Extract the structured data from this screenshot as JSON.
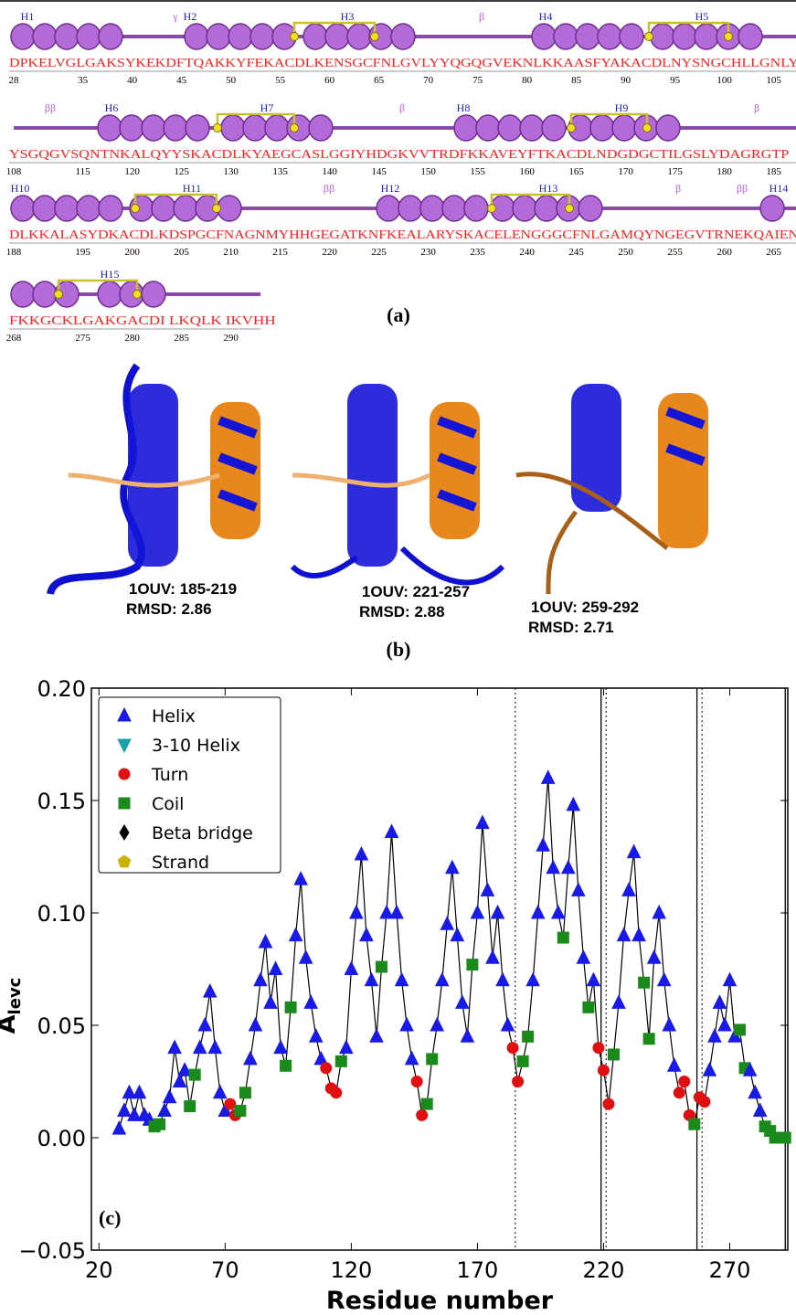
{
  "panel_a": {
    "caption": "(a)",
    "rows": [
      {
        "sequence": "DPKELVGLGAKSYKEKDFTQAKKYFEKACDLKENSGCFNLGVLYYQGQGVEKNLKKAASFYAKACDLNYSNGCHLLGNLY",
        "labels": [
          "H1",
          "γ",
          "H2",
          "H3",
          "β",
          "H4",
          "H5"
        ],
        "ticks": [
          28,
          35,
          40,
          45,
          50,
          55,
          60,
          65,
          70,
          75,
          80,
          85,
          90,
          95,
          100,
          105
        ]
      },
      {
        "sequence": "YSGQGVSQNTNKALQYYSKACDLKYAEGCASLGGIYHDGKVVTRDFKKAVEYFTKACDLNDGDGCTILGSLYDAGRGTP",
        "labels": [
          "ββ",
          "H6",
          "H7",
          "β",
          "H8",
          "H9",
          "β"
        ],
        "ticks": [
          108,
          115,
          120,
          125,
          130,
          135,
          140,
          145,
          150,
          155,
          160,
          165,
          170,
          175,
          180,
          185
        ]
      },
      {
        "sequence": "DLKKALASYDKACDLKDSPGCFNAGNMYHHGEGATKNFKEALARYSKACELENGGGCFNLGAMQYNGEGVTRNEKQAIEN",
        "labels": [
          "H10",
          "H11",
          "ββ",
          "H12",
          "H13",
          "β",
          "ββ",
          "H14"
        ],
        "ticks": [
          188,
          195,
          200,
          205,
          210,
          215,
          220,
          225,
          230,
          235,
          240,
          245,
          250,
          255,
          260,
          265
        ]
      },
      {
        "sequence": "FKKGCKLGAKGACDI LKQLK IKVHH",
        "labels": [
          "H15"
        ],
        "ticks": [
          268,
          275,
          280,
          285,
          290
        ]
      }
    ]
  },
  "panel_b": {
    "caption": "(b)",
    "models": [
      {
        "range": "1OUV: 185-219",
        "rmsd": "RMSD: 2.86"
      },
      {
        "range": "1OUV: 221-257",
        "rmsd": "RMSD: 2.88"
      },
      {
        "range": "1OUV: 259-292",
        "rmsd": "RMSD: 2.71"
      }
    ]
  },
  "chart_data": {
    "type": "line-scatter",
    "panel_label": "(c)",
    "x_label": "Residue number",
    "y_label": "A",
    "y_label_sub": "levc",
    "xlim": [
      17,
      293
    ],
    "ylim": [
      -0.05,
      0.2
    ],
    "xticks": [
      20,
      70,
      120,
      170,
      220,
      270
    ],
    "yticks": [
      {
        "value": 0.2,
        "label": "0.20"
      },
      0.15,
      {
        "value": 0.1,
        "label": "0.10"
      },
      0.05,
      {
        "value": 0,
        "label": "0.00"
      },
      {
        "value": -0.05,
        "label": "−0.05"
      }
    ],
    "line_color": "#000000",
    "legend_position": "upper left",
    "series": [
      {
        "name": "Helix",
        "color": "#1a1ae6",
        "marker": "triangle-up"
      },
      {
        "name": "3-10 Helix",
        "color": "#17a2a8",
        "marker": "triangle-down"
      },
      {
        "name": "Turn",
        "color": "#e01010",
        "marker": "circle"
      },
      {
        "name": "Coil",
        "color": "#1a8a1a",
        "marker": "square"
      },
      {
        "name": "Beta bridge",
        "color": "#000000",
        "marker": "diamond"
      },
      {
        "name": "Strand",
        "color": "#c8b400",
        "marker": "pentagon"
      }
    ],
    "vlines": [
      {
        "x": 185,
        "style": "dotted"
      },
      {
        "x": 219,
        "style": "solid"
      },
      {
        "x": 221,
        "style": "dotted"
      },
      {
        "x": 257,
        "style": "solid"
      },
      {
        "x": 259,
        "style": "dotted"
      },
      {
        "x": 292,
        "style": "solid"
      }
    ],
    "x": [
      28,
      30,
      32,
      34,
      36,
      38,
      40,
      42,
      44,
      46,
      48,
      50,
      52,
      54,
      56,
      58,
      60,
      62,
      64,
      66,
      68,
      70,
      72,
      74,
      76,
      78,
      80,
      82,
      84,
      86,
      88,
      90,
      92,
      94,
      96,
      98,
      100,
      102,
      104,
      106,
      108,
      110,
      112,
      114,
      116,
      118,
      120,
      122,
      124,
      126,
      128,
      130,
      132,
      134,
      136,
      138,
      140,
      142,
      144,
      146,
      148,
      150,
      152,
      154,
      156,
      158,
      160,
      162,
      164,
      166,
      168,
      170,
      172,
      174,
      176,
      178,
      180,
      182,
      184,
      186,
      188,
      190,
      192,
      194,
      196,
      198,
      200,
      202,
      204,
      206,
      208,
      210,
      212,
      214,
      216,
      218,
      220,
      222,
      224,
      226,
      228,
      230,
      232,
      234,
      236,
      238,
      240,
      242,
      244,
      246,
      248,
      250,
      252,
      254,
      256,
      258,
      260,
      262,
      264,
      266,
      268,
      270,
      272,
      274,
      276,
      278,
      280,
      282,
      284,
      286,
      288,
      290,
      292
    ],
    "values": [
      0.004,
      0.012,
      0.02,
      0.01,
      0.02,
      0.01,
      0.008,
      0.005,
      0.006,
      0.012,
      0.018,
      0.04,
      0.025,
      0.03,
      0.014,
      0.028,
      0.04,
      0.05,
      0.065,
      0.04,
      0.02,
      0.012,
      0.015,
      0.01,
      0.012,
      0.02,
      0.035,
      0.05,
      0.07,
      0.087,
      0.06,
      0.075,
      0.04,
      0.032,
      0.058,
      0.09,
      0.115,
      0.08,
      0.06,
      0.045,
      0.035,
      0.031,
      0.022,
      0.02,
      0.034,
      0.04,
      0.075,
      0.1,
      0.126,
      0.09,
      0.07,
      0.045,
      0.076,
      0.1,
      0.136,
      0.1,
      0.07,
      0.05,
      0.035,
      0.025,
      0.01,
      0.015,
      0.035,
      0.05,
      0.07,
      0.095,
      0.12,
      0.09,
      0.06,
      0.045,
      0.077,
      0.1,
      0.14,
      0.11,
      0.08,
      0.1,
      0.07,
      0.05,
      0.04,
      0.025,
      0.034,
      0.045,
      0.07,
      0.1,
      0.13,
      0.16,
      0.12,
      0.1,
      0.089,
      0.12,
      0.148,
      0.11,
      0.08,
      0.058,
      0.07,
      0.04,
      0.03,
      0.015,
      0.037,
      0.06,
      0.09,
      0.11,
      0.127,
      0.09,
      0.069,
      0.044,
      0.08,
      0.1,
      0.07,
      0.05,
      0.032,
      0.02,
      0.025,
      0.01,
      0.006,
      0.018,
      0.016,
      0.03,
      0.045,
      0.06,
      0.05,
      0.07,
      0.045,
      0.048,
      0.031,
      0.03,
      0.02,
      0.012,
      0.005,
      0.003,
      0,
      0,
      0
    ],
    "structure": [
      0,
      0,
      0,
      0,
      0,
      0,
      0,
      3,
      3,
      0,
      0,
      0,
      0,
      0,
      3,
      3,
      0,
      0,
      0,
      0,
      0,
      0,
      2,
      2,
      3,
      3,
      0,
      0,
      0,
      0,
      0,
      0,
      0,
      3,
      3,
      0,
      0,
      0,
      0,
      0,
      0,
      2,
      2,
      2,
      3,
      0,
      0,
      0,
      0,
      0,
      0,
      0,
      3,
      0,
      0,
      0,
      0,
      0,
      0,
      2,
      2,
      3,
      3,
      0,
      0,
      0,
      0,
      0,
      0,
      0,
      3,
      0,
      0,
      0,
      0,
      0,
      0,
      0,
      2,
      2,
      3,
      3,
      0,
      0,
      0,
      0,
      0,
      0,
      3,
      0,
      0,
      0,
      0,
      3,
      0,
      2,
      2,
      2,
      3,
      0,
      0,
      0,
      0,
      0,
      3,
      3,
      0,
      0,
      0,
      0,
      0,
      2,
      2,
      2,
      3,
      2,
      2,
      0,
      0,
      0,
      0,
      0,
      0,
      3,
      3,
      0,
      0,
      0,
      3,
      3,
      3,
      3,
      3
    ]
  }
}
